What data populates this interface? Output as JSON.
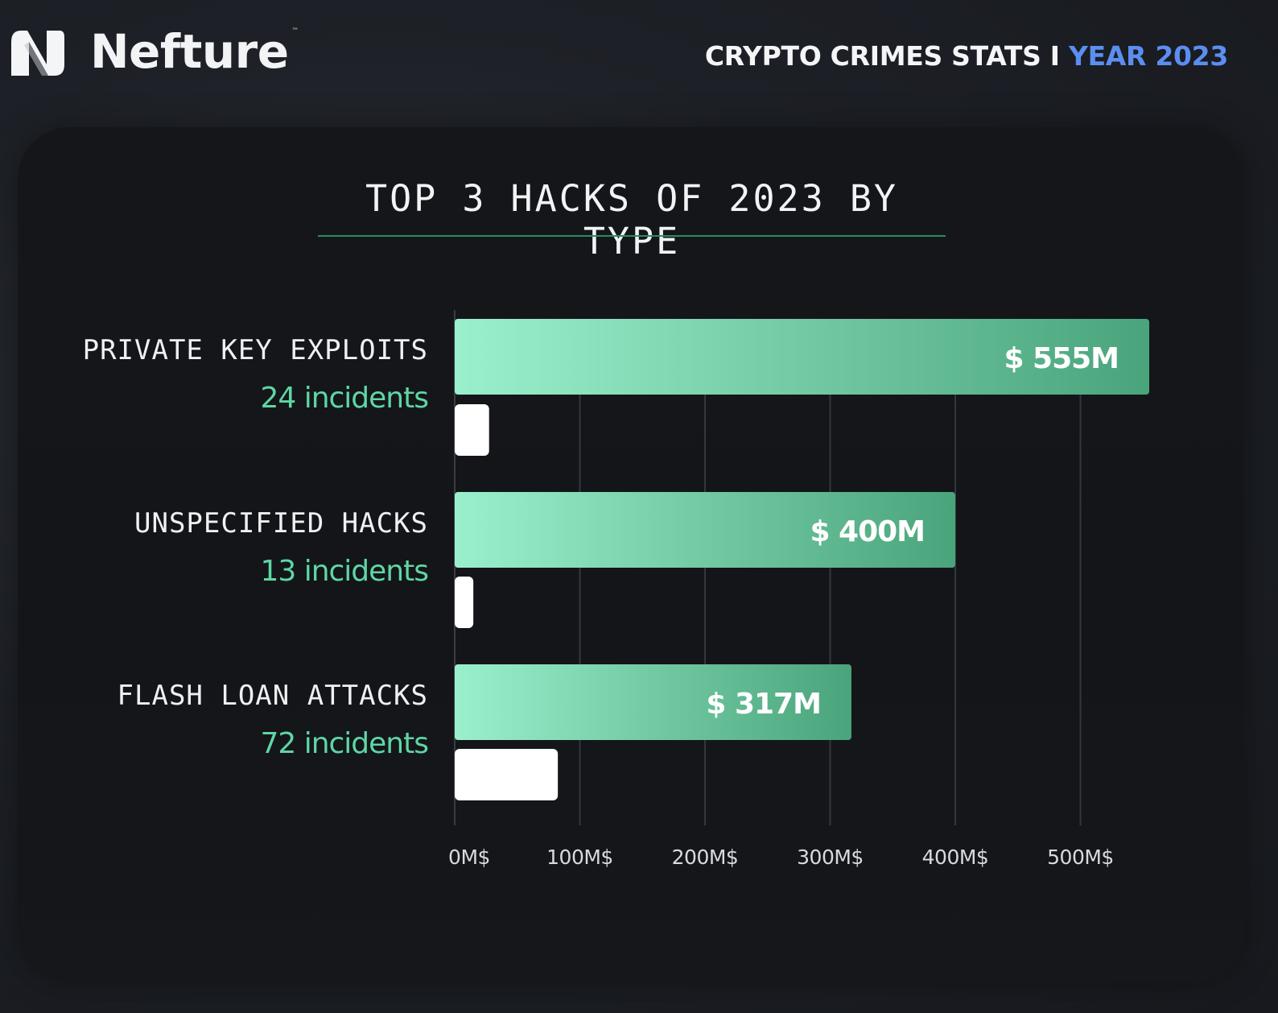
{
  "brand": {
    "name": "Nefture",
    "tm": "™"
  },
  "header": {
    "prefix": "CRYPTO CRIMES STATS I ",
    "year": "YEAR 2023"
  },
  "colors": {
    "bar_start": "#9af0cc",
    "bar_end": "#4aa47b",
    "accent_blue": "#5b8ef0",
    "count_green": "#5fd6a4"
  },
  "chart_data": {
    "type": "bar",
    "orientation": "horizontal",
    "title": "TOP 3 HACKS OF 2023 BY TYPE",
    "categories": [
      "PRIVATE KEY EXPLOITS",
      "UNSPECIFIED HACKS",
      "FLASH LOAN ATTACKS"
    ],
    "series": [
      {
        "values": [
          555,
          400,
          317
        ],
        "data_labels": [
          "$ 555M",
          "$ 400M",
          "$ 317M"
        ]
      },
      {
        "values": [
          24,
          13,
          72
        ],
        "data_labels": [
          "24 incidents",
          "13 incidents",
          "72 incidents"
        ]
      }
    ],
    "xlim": [
      0,
      530
    ],
    "xticks": [
      0,
      100,
      200,
      300,
      400,
      500
    ],
    "xtick_labels": [
      "0M$",
      "100M$",
      "200M$",
      "300M$",
      "400M$",
      "500M$"
    ],
    "grid": true
  }
}
